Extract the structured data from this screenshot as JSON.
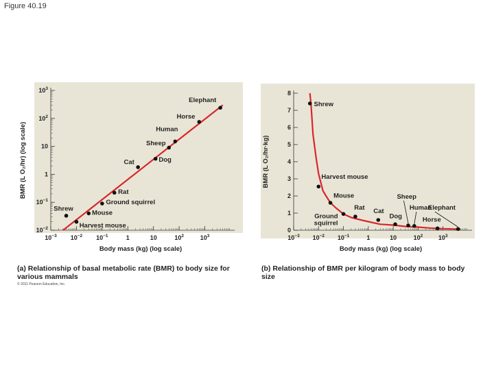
{
  "figure_label": "Figure 40.19",
  "copyright": "© 2011 Pearson Education, Inc.",
  "chart_data": [
    {
      "type": "line",
      "panel": "a",
      "caption": "(a) Relationship of basal metabolic rate (BMR) to body size for various mammals",
      "xlabel": "Body mass (kg) (log scale)",
      "ylabel": "BMR (L O₂/hr) (log scale)",
      "xscale": "log",
      "yscale": "log",
      "xlim": [
        0.001,
        10000
      ],
      "ylim": [
        0.01,
        1000
      ],
      "xticks": [
        {
          "v": 0.001,
          "b": "10",
          "e": "−3"
        },
        {
          "v": 0.01,
          "b": "10",
          "e": "−2"
        },
        {
          "v": 0.1,
          "b": "10",
          "e": "−1"
        },
        {
          "v": 1,
          "b": "1",
          "e": ""
        },
        {
          "v": 10,
          "b": "10",
          "e": ""
        },
        {
          "v": 100,
          "b": "10",
          "e": "2"
        },
        {
          "v": 1000,
          "b": "10",
          "e": "3"
        }
      ],
      "yticks": [
        {
          "v": 0.01,
          "b": "10",
          "e": "−2"
        },
        {
          "v": 0.1,
          "b": "10",
          "e": "−1"
        },
        {
          "v": 1,
          "b": "1",
          "e": ""
        },
        {
          "v": 10,
          "b": "10",
          "e": ""
        },
        {
          "v": 100,
          "b": "10",
          "e": "2"
        },
        {
          "v": 1000,
          "b": "10",
          "e": "3"
        }
      ],
      "fit_line": {
        "x": [
          0.003,
          5000
        ],
        "y": [
          0.01,
          300
        ],
        "color": "#d8262b"
      },
      "points": [
        {
          "name": "Shrew",
          "x": 0.004,
          "y": 0.033,
          "anchor": "start",
          "lx": 0.0013,
          "ly": 0.05
        },
        {
          "name": "Harvest mouse",
          "x": 0.01,
          "y": 0.02,
          "anchor": "start",
          "lx": 0.013,
          "ly": 0.0125
        },
        {
          "name": "Mouse",
          "x": 0.03,
          "y": 0.04,
          "anchor": "start",
          "lx": 0.04,
          "ly": 0.036
        },
        {
          "name": "Ground squirrel",
          "x": 0.1,
          "y": 0.09,
          "anchor": "start",
          "lx": 0.14,
          "ly": 0.085
        },
        {
          "name": "Rat",
          "x": 0.3,
          "y": 0.22,
          "anchor": "start",
          "lx": 0.42,
          "ly": 0.2
        },
        {
          "name": "Cat",
          "x": 2.5,
          "y": 1.8,
          "anchor": "end",
          "lx": 1.8,
          "ly": 2.3
        },
        {
          "name": "Dog",
          "x": 12,
          "y": 3.6,
          "anchor": "start",
          "lx": 16,
          "ly": 2.8
        },
        {
          "name": "Sheep",
          "x": 40,
          "y": 9,
          "anchor": "end",
          "lx": 30,
          "ly": 11
        },
        {
          "name": "Human",
          "x": 70,
          "y": 15,
          "anchor": "end",
          "lx": 90,
          "ly": 35
        },
        {
          "name": "Horse",
          "x": 600,
          "y": 75,
          "anchor": "end",
          "lx": 420,
          "ly": 100
        },
        {
          "name": "Elephant",
          "x": 4000,
          "y": 240,
          "anchor": "end",
          "lx": 2800,
          "ly": 380
        }
      ]
    },
    {
      "type": "line",
      "panel": "b",
      "caption": "(b) Relationship of BMR per kilogram of body mass to body size",
      "xlabel": "Body mass (kg) (log scale)",
      "ylabel": "BMR (L O₂/hr·kg)",
      "xscale": "log",
      "yscale": "linear",
      "xlim": [
        0.001,
        10000
      ],
      "ylim": [
        0,
        8
      ],
      "xticks": [
        {
          "v": 0.001,
          "b": "10",
          "e": "−3"
        },
        {
          "v": 0.01,
          "b": "10",
          "e": "−2"
        },
        {
          "v": 0.1,
          "b": "10",
          "e": "−1"
        },
        {
          "v": 1,
          "b": "1",
          "e": ""
        },
        {
          "v": 10,
          "b": "10",
          "e": ""
        },
        {
          "v": 100,
          "b": "10",
          "e": "2"
        },
        {
          "v": 1000,
          "b": "10",
          "e": "3"
        }
      ],
      "yticks": [
        0,
        1,
        2,
        3,
        4,
        5,
        6,
        7,
        8
      ],
      "curve": {
        "x": [
          0.0045,
          0.005,
          0.006,
          0.008,
          0.01,
          0.015,
          0.02,
          0.03,
          0.05,
          0.1,
          0.2,
          0.5,
          1,
          3,
          10,
          30,
          100,
          300,
          1000,
          5000
        ],
        "y": [
          8,
          7.3,
          5.6,
          4.2,
          3.3,
          2.3,
          2.0,
          1.6,
          1.3,
          0.95,
          0.75,
          0.6,
          0.5,
          0.35,
          0.3,
          0.22,
          0.18,
          0.13,
          0.09,
          0.06
        ],
        "color": "#d8262b"
      },
      "points": [
        {
          "name": "Shrew",
          "x": 0.0045,
          "y": 7.4,
          "anchor": "start",
          "lx": 0.0065,
          "ly": 7.25
        },
        {
          "name": "Harvest mouse",
          "x": 0.01,
          "y": 2.55,
          "anchor": "start",
          "lx": 0.013,
          "ly": 3.0
        },
        {
          "name": "Mouse",
          "x": 0.03,
          "y": 1.6,
          "anchor": "start",
          "lx": 0.04,
          "ly": 1.9
        },
        {
          "name": "Ground squirrel",
          "x": 0.1,
          "y": 0.95,
          "anchor": "end",
          "lx": 0.06,
          "ly": 0.7,
          "lines": [
            "Ground",
            "squirrel"
          ]
        },
        {
          "name": "Rat",
          "x": 0.3,
          "y": 0.8,
          "anchor": "start",
          "lx": 0.27,
          "ly": 1.2
        },
        {
          "name": "Cat",
          "x": 2.5,
          "y": 0.6,
          "anchor": "start",
          "lx": 1.6,
          "ly": 1.0
        },
        {
          "name": "Dog",
          "x": 12,
          "y": 0.35,
          "anchor": "start",
          "lx": 7,
          "ly": 0.7
        },
        {
          "name": "Sheep",
          "x": 40,
          "y": 0.28,
          "anchor": "start",
          "lx": 14,
          "ly": 1.85,
          "arrow": true
        },
        {
          "name": "Human",
          "x": 70,
          "y": 0.25,
          "anchor": "start",
          "lx": 45,
          "ly": 1.2,
          "arrow": true
        },
        {
          "name": "Horse",
          "x": 600,
          "y": 0.11,
          "anchor": "start",
          "lx": 150,
          "ly": 0.5
        },
        {
          "name": "Elephant",
          "x": 4000,
          "y": 0.07,
          "anchor": "start",
          "lx": 250,
          "ly": 1.2,
          "arrow": true
        }
      ]
    }
  ]
}
